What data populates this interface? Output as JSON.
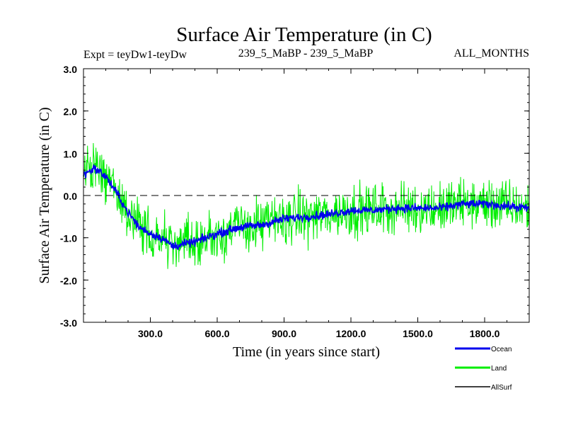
{
  "chart_data": {
    "type": "line",
    "title": "Surface Air Temperature (in C)",
    "subtitle_left": "Expt = teyDw1-teyDw",
    "subtitle_center": "239_5_MaBP - 239_5_MaBP",
    "subtitle_right": "ALL_MONTHS",
    "xlabel": "Time (in years since start)",
    "ylabel": "Surface Air Temperature (in C)",
    "xlim": [
      0,
      2000
    ],
    "ylim": [
      -3.0,
      3.0
    ],
    "x_ticks": [
      300,
      600,
      900,
      1200,
      1500,
      1800
    ],
    "x_tick_labels": [
      "300.0",
      "600.0",
      "900.0",
      "1200.0",
      "1500.0",
      "1800.0"
    ],
    "y_ticks": [
      3.0,
      2.0,
      1.0,
      0.0,
      -1.0,
      -2.0,
      -3.0
    ],
    "y_tick_labels": [
      "3.0",
      "2.0",
      "1.0",
      "0.0",
      "-1.0",
      "-2.0",
      "-3.0"
    ],
    "zero_line": true,
    "legend_position": "bottom-right",
    "series": [
      {
        "name": "Land",
        "color": "#00ee00",
        "trend_x": [
          0,
          50,
          100,
          150,
          200,
          250,
          300,
          350,
          400,
          450,
          500,
          600,
          700,
          800,
          900,
          1000,
          1100,
          1200,
          1300,
          1400,
          1500,
          1600,
          1700,
          1800,
          1900,
          2000
        ],
        "trend_y": [
          0.55,
          0.65,
          0.45,
          0.05,
          -0.4,
          -0.75,
          -0.9,
          -1.0,
          -1.2,
          -1.15,
          -1.1,
          -0.9,
          -0.75,
          -0.7,
          -0.55,
          -0.5,
          -0.45,
          -0.35,
          -0.35,
          -0.3,
          -0.3,
          -0.3,
          -0.2,
          -0.2,
          -0.25,
          -0.3
        ],
        "noise_amplitude": 0.9
      },
      {
        "name": "Ocean",
        "color": "#0000ee",
        "trend_x": [
          0,
          50,
          100,
          150,
          200,
          250,
          300,
          350,
          400,
          450,
          500,
          600,
          700,
          800,
          900,
          1000,
          1100,
          1200,
          1300,
          1400,
          1500,
          1600,
          1700,
          1800,
          1900,
          2000
        ],
        "trend_y": [
          0.5,
          0.65,
          0.45,
          0.05,
          -0.4,
          -0.75,
          -0.9,
          -1.0,
          -1.2,
          -1.15,
          -1.1,
          -0.9,
          -0.75,
          -0.7,
          -0.55,
          -0.5,
          -0.45,
          -0.35,
          -0.35,
          -0.3,
          -0.3,
          -0.3,
          -0.2,
          -0.2,
          -0.25,
          -0.3
        ],
        "noise_amplitude": 0.15
      },
      {
        "name": "AllSurf",
        "color": "#000000",
        "trend_x": [],
        "trend_y": [],
        "noise_amplitude": 0
      }
    ]
  }
}
